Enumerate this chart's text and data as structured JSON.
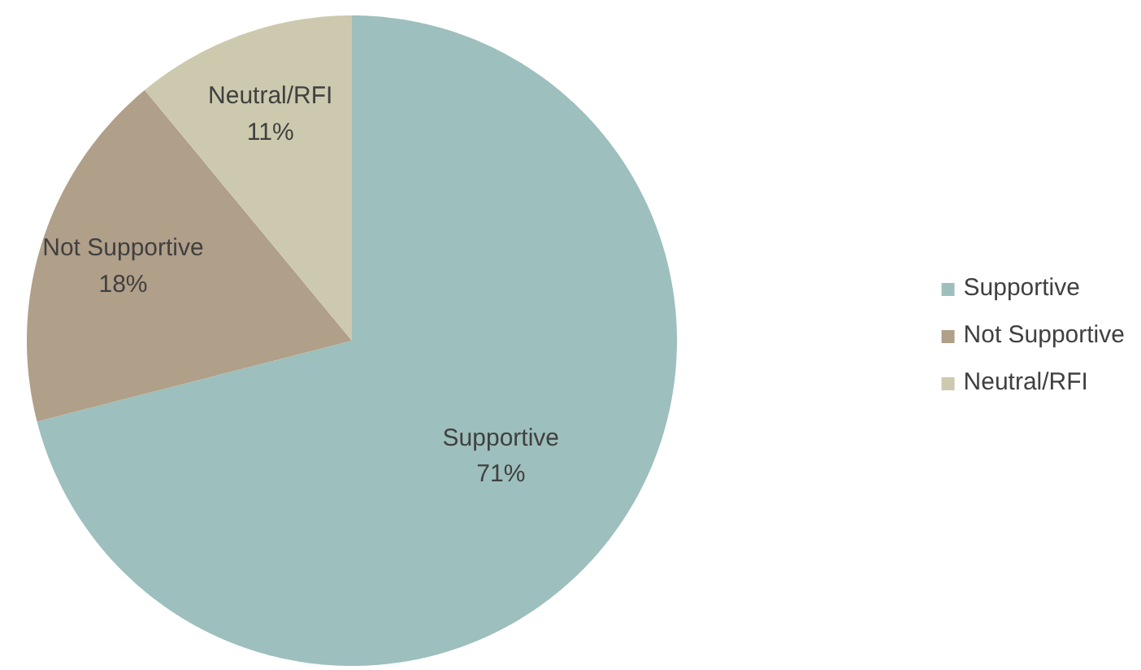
{
  "chart_data": {
    "type": "pie",
    "categories": [
      "Supportive",
      "Not Supportive",
      "Neutral/RFI"
    ],
    "values": [
      71,
      18,
      11
    ],
    "value_labels": [
      "71%",
      "18%",
      "11%"
    ],
    "colors": [
      "#9dbfbd",
      "#b09f89",
      "#cdc9ae"
    ],
    "legend": "right"
  }
}
